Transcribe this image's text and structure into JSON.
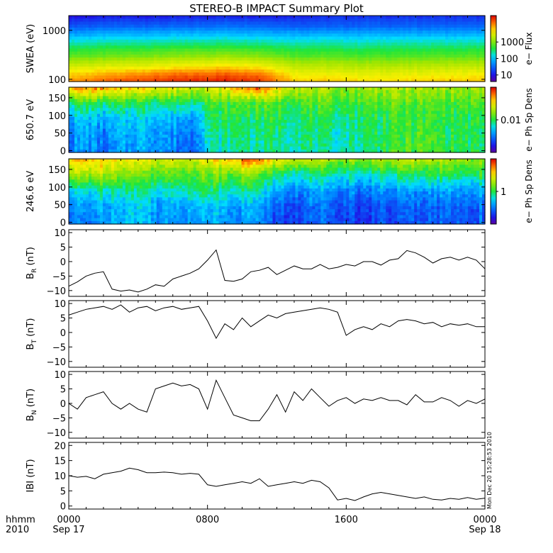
{
  "title": "STEREO-B IMPACT Summary Plot",
  "stamp": "Mon Dec 20 15:28:53 2010",
  "x_axis": {
    "corner_top": "hhmm",
    "corner_bottom": "2010",
    "ticks": [
      {
        "hour": 0,
        "top": "0000",
        "bottom": "Sep 17"
      },
      {
        "hour": 8,
        "top": "0800",
        "bottom": ""
      },
      {
        "hour": 16,
        "top": "1600",
        "bottom": ""
      },
      {
        "hour": 24,
        "top": "0000",
        "bottom": "Sep 18"
      }
    ]
  },
  "chart_data": [
    {
      "id": "swea",
      "type": "heatmap",
      "ylabel": "SWEA (eV)",
      "yscale": "log",
      "ylim": [
        90,
        2000
      ],
      "yticks": [
        100,
        1000
      ],
      "ytick_labels": [
        "100",
        "1000"
      ],
      "colorbar": {
        "label": "e− Flux",
        "scale": "log",
        "range": [
          4,
          40000
        ],
        "ticks": [
          10,
          100,
          1000
        ],
        "tick_labels": [
          "10",
          "100",
          "1000"
        ]
      },
      "x_hours": [
        0,
        3,
        6,
        9,
        11,
        13,
        15,
        17,
        19,
        21,
        24
      ],
      "y_energy_eV": [
        90,
        120,
        180,
        300,
        500,
        800,
        1200,
        2000
      ],
      "z_level": [
        [
          0.85,
          0.92,
          0.95,
          0.97,
          0.95,
          0.8,
          0.8,
          0.78,
          0.78,
          0.8,
          0.8
        ],
        [
          0.8,
          0.85,
          0.9,
          0.92,
          0.9,
          0.76,
          0.75,
          0.74,
          0.74,
          0.75,
          0.76
        ],
        [
          0.7,
          0.72,
          0.75,
          0.78,
          0.76,
          0.68,
          0.67,
          0.66,
          0.66,
          0.67,
          0.68
        ],
        [
          0.56,
          0.58,
          0.6,
          0.62,
          0.6,
          0.55,
          0.55,
          0.54,
          0.54,
          0.55,
          0.55
        ],
        [
          0.45,
          0.46,
          0.47,
          0.48,
          0.47,
          0.45,
          0.45,
          0.44,
          0.45,
          0.45,
          0.45
        ],
        [
          0.32,
          0.33,
          0.34,
          0.35,
          0.34,
          0.33,
          0.33,
          0.33,
          0.33,
          0.33,
          0.33
        ],
        [
          0.2,
          0.22,
          0.22,
          0.24,
          0.23,
          0.21,
          0.21,
          0.22,
          0.22,
          0.22,
          0.22
        ],
        [
          0.08,
          0.1,
          0.1,
          0.12,
          0.11,
          0.12,
          0.13,
          0.14,
          0.13,
          0.14,
          0.13
        ]
      ]
    },
    {
      "id": "pad650",
      "type": "heatmap",
      "ylabel": "650.7 eV",
      "ylim": [
        -5,
        180
      ],
      "yticks": [
        0,
        50,
        100,
        150
      ],
      "ytick_labels": [
        "0",
        "50",
        "100",
        "150"
      ],
      "colorbar": {
        "label": "e− Ph Sp Dens",
        "scale": "log",
        "range": [
          0.001,
          0.1
        ],
        "ticks": [
          0.01
        ],
        "tick_labels": [
          "0.01"
        ]
      },
      "x_hours": [
        0,
        1,
        2,
        3,
        4,
        5,
        6,
        7,
        8,
        9,
        10,
        11,
        12,
        13,
        14,
        15,
        16,
        17,
        18,
        19,
        20,
        21,
        22,
        23,
        24
      ],
      "y_pitch_deg": [
        0,
        45,
        90,
        135,
        180
      ],
      "z_level": [
        [
          0.25,
          0.3,
          0.22,
          0.28,
          0.32,
          0.3,
          0.26,
          0.22,
          0.4,
          0.42,
          0.45,
          0.43,
          0.46,
          0.45,
          0.44,
          0.4,
          0.42,
          0.44,
          0.5,
          0.52,
          0.55,
          0.52,
          0.5,
          0.48,
          0.45
        ],
        [
          0.27,
          0.32,
          0.24,
          0.3,
          0.34,
          0.32,
          0.28,
          0.24,
          0.42,
          0.44,
          0.47,
          0.45,
          0.47,
          0.46,
          0.46,
          0.42,
          0.44,
          0.46,
          0.5,
          0.52,
          0.54,
          0.52,
          0.5,
          0.48,
          0.46
        ],
        [
          0.32,
          0.36,
          0.3,
          0.34,
          0.38,
          0.36,
          0.32,
          0.3,
          0.46,
          0.48,
          0.49,
          0.48,
          0.49,
          0.48,
          0.48,
          0.46,
          0.47,
          0.48,
          0.5,
          0.51,
          0.52,
          0.51,
          0.5,
          0.49,
          0.48
        ],
        [
          0.48,
          0.5,
          0.47,
          0.48,
          0.5,
          0.49,
          0.48,
          0.46,
          0.52,
          0.53,
          0.55,
          0.54,
          0.55,
          0.54,
          0.54,
          0.52,
          0.53,
          0.54,
          0.54,
          0.55,
          0.55,
          0.54,
          0.54,
          0.53,
          0.53
        ],
        [
          0.82,
          0.88,
          0.85,
          0.78,
          0.8,
          0.76,
          0.74,
          0.7,
          0.72,
          0.75,
          0.88,
          0.92,
          0.78,
          0.7,
          0.66,
          0.64,
          0.62,
          0.64,
          0.66,
          0.66,
          0.65,
          0.64,
          0.64,
          0.63,
          0.62
        ]
      ]
    },
    {
      "id": "pad246",
      "type": "heatmap",
      "ylabel": "246.6 eV",
      "ylim": [
        -5,
        180
      ],
      "yticks": [
        0,
        50,
        100,
        150
      ],
      "ytick_labels": [
        "0",
        "50",
        "100",
        "150"
      ],
      "colorbar": {
        "label": "e− Ph Sp Dens",
        "scale": "log",
        "range": [
          0.1,
          10
        ],
        "ticks": [
          1
        ],
        "tick_labels": [
          "1"
        ]
      },
      "x_hours": [
        0,
        1,
        2,
        3,
        4,
        5,
        6,
        7,
        8,
        9,
        10,
        11,
        12,
        13,
        14,
        15,
        16,
        17,
        18,
        19,
        20,
        21,
        22,
        23,
        24
      ],
      "y_pitch_deg": [
        0,
        45,
        90,
        135,
        180
      ],
      "z_level": [
        [
          0.22,
          0.26,
          0.3,
          0.34,
          0.36,
          0.3,
          0.28,
          0.3,
          0.32,
          0.3,
          0.28,
          0.3,
          0.18,
          0.15,
          0.2,
          0.22,
          0.18,
          0.16,
          0.18,
          0.18,
          0.2,
          0.22,
          0.2,
          0.2,
          0.22
        ],
        [
          0.26,
          0.3,
          0.33,
          0.36,
          0.38,
          0.32,
          0.3,
          0.34,
          0.36,
          0.34,
          0.32,
          0.33,
          0.2,
          0.18,
          0.22,
          0.24,
          0.2,
          0.18,
          0.2,
          0.2,
          0.22,
          0.24,
          0.22,
          0.22,
          0.24
        ],
        [
          0.36,
          0.4,
          0.44,
          0.45,
          0.46,
          0.42,
          0.4,
          0.46,
          0.48,
          0.46,
          0.44,
          0.44,
          0.3,
          0.26,
          0.3,
          0.32,
          0.28,
          0.26,
          0.28,
          0.28,
          0.3,
          0.32,
          0.3,
          0.3,
          0.32
        ],
        [
          0.62,
          0.64,
          0.66,
          0.62,
          0.58,
          0.56,
          0.54,
          0.56,
          0.58,
          0.58,
          0.6,
          0.58,
          0.46,
          0.42,
          0.44,
          0.46,
          0.42,
          0.4,
          0.44,
          0.46,
          0.48,
          0.5,
          0.48,
          0.48,
          0.5
        ],
        [
          0.78,
          0.82,
          0.8,
          0.78,
          0.76,
          0.72,
          0.7,
          0.72,
          0.75,
          0.8,
          0.9,
          0.92,
          0.74,
          0.7,
          0.68,
          0.66,
          0.62,
          0.64,
          0.66,
          0.66,
          0.68,
          0.66,
          0.64,
          0.62,
          0.62
        ]
      ]
    },
    {
      "id": "br",
      "type": "line",
      "ylabel": "B",
      "ylabel_sub": "R",
      "ylabel_unit": "(nT)",
      "ylim": [
        -12,
        11
      ],
      "yticks": [
        -10,
        -5,
        0,
        5,
        10
      ],
      "ytick_labels": [
        "−10",
        "−5",
        "0",
        "5",
        "10"
      ],
      "x": [
        0,
        0.5,
        1,
        1.5,
        2,
        2.5,
        3,
        3.5,
        4,
        4.5,
        5,
        5.5,
        6,
        6.5,
        7,
        7.5,
        8,
        8.5,
        9,
        9.5,
        10,
        10.5,
        11,
        11.5,
        12,
        12.5,
        13,
        13.5,
        14,
        14.5,
        15,
        15.5,
        16,
        16.5,
        17,
        17.5,
        18,
        18.5,
        19,
        19.5,
        20,
        20.5,
        21,
        21.5,
        22,
        22.5,
        23,
        23.5,
        24
      ],
      "y": [
        -8.5,
        -7,
        -5,
        -4,
        -3.5,
        -9.5,
        -10.2,
        -9.8,
        -10.5,
        -9.5,
        -8,
        -8.5,
        -6,
        -5,
        -4,
        -2.5,
        0.5,
        4,
        -6.5,
        -6.8,
        -6,
        -3.5,
        -3,
        -2,
        -4.5,
        -3,
        -1.5,
        -2.5,
        -2.5,
        -1,
        -2.5,
        -2,
        -1,
        -1.5,
        0,
        0,
        -1.2,
        0.5,
        1,
        3.8,
        3,
        1.5,
        -0.5,
        1,
        1.5,
        0.5,
        1.5,
        0.5,
        -2.5
      ]
    },
    {
      "id": "bt",
      "type": "line",
      "ylabel": "B",
      "ylabel_sub": "T",
      "ylabel_unit": "(nT)",
      "ylim": [
        -12,
        11
      ],
      "yticks": [
        -10,
        -5,
        0,
        5,
        10
      ],
      "ytick_labels": [
        "−10",
        "−5",
        "0",
        "5",
        "10"
      ],
      "x": [
        0,
        0.5,
        1,
        1.5,
        2,
        2.5,
        3,
        3.5,
        4,
        4.5,
        5,
        5.5,
        6,
        6.5,
        7,
        7.5,
        8,
        8.5,
        9,
        9.5,
        10,
        10.5,
        11,
        11.5,
        12,
        12.5,
        13,
        13.5,
        14,
        14.5,
        15,
        15.5,
        16,
        16.5,
        17,
        17.5,
        18,
        18.5,
        19,
        19.5,
        20,
        20.5,
        21,
        21.5,
        22,
        22.5,
        23,
        23.5,
        24
      ],
      "y": [
        6,
        7,
        8,
        8.5,
        9,
        8,
        9.5,
        7,
        8.5,
        9,
        7.5,
        8.5,
        9,
        8,
        8.5,
        9,
        4,
        -2,
        3,
        1,
        5,
        2,
        4,
        6,
        5,
        6.5,
        7,
        7.5,
        8,
        8.5,
        8,
        7,
        -1,
        1,
        2,
        1,
        3,
        2,
        4,
        4.5,
        4,
        3,
        3.5,
        2,
        3,
        2.5,
        3,
        2,
        2
      ]
    },
    {
      "id": "bn",
      "type": "line",
      "ylabel": "B",
      "ylabel_sub": "N",
      "ylabel_unit": "(nT)",
      "ylim": [
        -12,
        11
      ],
      "yticks": [
        -10,
        -5,
        0,
        5,
        10
      ],
      "ytick_labels": [
        "−10",
        "−5",
        "0",
        "5",
        "10"
      ],
      "x": [
        0,
        0.5,
        1,
        1.5,
        2,
        2.5,
        3,
        3.5,
        4,
        4.5,
        5,
        5.5,
        6,
        6.5,
        7,
        7.5,
        8,
        8.5,
        9,
        9.5,
        10,
        10.5,
        11,
        11.5,
        12,
        12.5,
        13,
        13.5,
        14,
        14.5,
        15,
        15.5,
        16,
        16.5,
        17,
        17.5,
        18,
        18.5,
        19,
        19.5,
        20,
        20.5,
        21,
        21.5,
        22,
        22.5,
        23,
        23.5,
        24
      ],
      "y": [
        0,
        -2,
        2,
        3,
        4,
        0,
        -2,
        0,
        -2,
        -3,
        5,
        6,
        7,
        6,
        6.5,
        5,
        -2,
        8,
        2,
        -4,
        -5,
        -6,
        -6,
        -2,
        3,
        -3,
        4,
        1,
        5,
        2,
        -1,
        1,
        2,
        0,
        1.5,
        1,
        2,
        1,
        1,
        -0.5,
        3,
        0.5,
        0.5,
        2,
        1,
        -1,
        1,
        0,
        1.5
      ]
    },
    {
      "id": "bmag",
      "type": "line",
      "ylabel": "IBI",
      "ylabel_unit": "(nT)",
      "ylim": [
        -1,
        21
      ],
      "yticks": [
        0,
        5,
        10,
        15,
        20
      ],
      "ytick_labels": [
        "0",
        "5",
        "10",
        "15",
        "20"
      ],
      "x": [
        0,
        0.5,
        1,
        1.5,
        2,
        2.5,
        3,
        3.5,
        4,
        4.5,
        5,
        5.5,
        6,
        6.5,
        7,
        7.5,
        8,
        8.5,
        9,
        9.5,
        10,
        10.5,
        11,
        11.5,
        12,
        12.5,
        13,
        13.5,
        14,
        14.5,
        15,
        15.5,
        16,
        16.5,
        17,
        17.5,
        18,
        18.5,
        19,
        19.5,
        20,
        20.5,
        21,
        21.5,
        22,
        22.5,
        23,
        23.5,
        24
      ],
      "y": [
        10,
        9.5,
        9.8,
        9,
        10.5,
        11,
        11.5,
        12.5,
        12,
        11,
        11,
        11.2,
        11,
        10.5,
        10.8,
        10.5,
        7,
        6.5,
        7,
        7.5,
        8,
        7.5,
        9,
        6.5,
        7,
        7.5,
        8,
        7.5,
        8.5,
        8,
        6,
        2,
        2.5,
        1.8,
        3,
        4,
        4.5,
        4,
        3.5,
        3,
        2.5,
        3,
        2.2,
        2,
        2.5,
        2.2,
        2.8,
        2.2,
        2.6
      ]
    }
  ]
}
